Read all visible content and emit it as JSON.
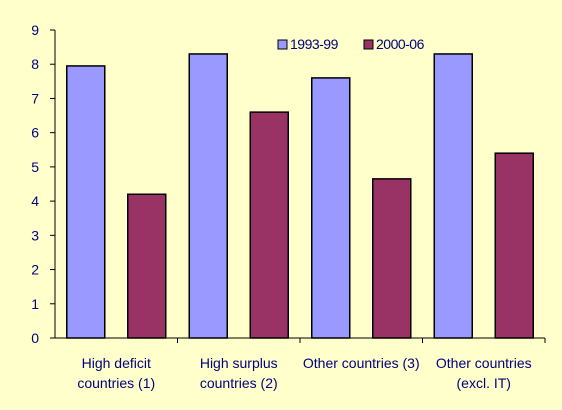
{
  "chart_data": {
    "type": "bar",
    "title": "",
    "xlabel": "",
    "ylabel": "",
    "categories": [
      [
        "High deficit",
        "countries (1)"
      ],
      [
        "High surplus",
        "countries (2)"
      ],
      [
        "Other countries (3)"
      ],
      [
        "Other countries",
        "(excl. IT)"
      ]
    ],
    "series": [
      {
        "name": "1993-99",
        "values": [
          7.95,
          8.3,
          7.6,
          8.3
        ],
        "color": "#9999FF"
      },
      {
        "name": "2000-06",
        "values": [
          4.2,
          6.6,
          4.65,
          5.4
        ],
        "color": "#993366"
      }
    ],
    "ylim": [
      0,
      9
    ],
    "yticks": [
      "0",
      "1",
      "2",
      "3",
      "4",
      "5",
      "6",
      "7",
      "8",
      "9"
    ],
    "grid": false,
    "legend_position": "top-right",
    "colors": {
      "background": "#FFFFCC",
      "axis": "#000000",
      "text": "#000080"
    }
  }
}
